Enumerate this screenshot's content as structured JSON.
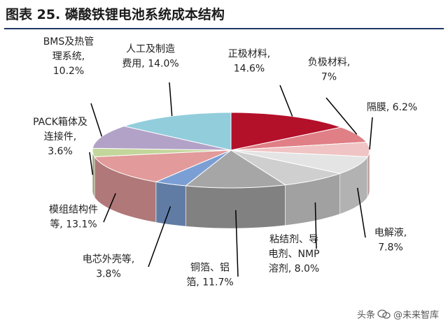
{
  "title": "图表 25. 磷酸铁锂电池系统成本结构",
  "watermark": {
    "prefix": "头条",
    "account": "@未来智库"
  },
  "chart_data": {
    "type": "pie",
    "title": "图表 25. 磷酸铁锂电池系统成本结构",
    "unit": "%",
    "start_direction": "top",
    "direction": "clockwise",
    "three_d": true,
    "legend": "none (labels with leader lines)",
    "slices": [
      {
        "name": "正极材料",
        "value": 14.6,
        "label_lines": [
          "正极材料,",
          "14.6%"
        ],
        "color": "#b3102a"
      },
      {
        "name": "负极材料",
        "value": 7.0,
        "label_lines": [
          "负极材料,",
          "7%"
        ],
        "color": "#e07f86"
      },
      {
        "name": "隔膜",
        "value": 6.2,
        "label_lines": [
          "隔膜, 6.2%"
        ],
        "color": "#f0c4c4"
      },
      {
        "name": "电解液",
        "value": 7.8,
        "label_lines": [
          "电解液,",
          "7.8%"
        ],
        "color": "#e4e4e4"
      },
      {
        "name": "粘结剂、导电剂、NMP溶剂",
        "value": 8.0,
        "label_lines": [
          "粘结剂、导",
          "电剂、NMP",
          "溶剂, 8.0%"
        ],
        "color": "#cfcfcf"
      },
      {
        "name": "铜箔、铝箔",
        "value": 11.7,
        "label_lines": [
          "铜箔、铝",
          "箔, 11.7%"
        ],
        "color": "#a6a6a6"
      },
      {
        "name": "电芯外壳等",
        "value": 3.8,
        "label_lines": [
          "电芯外壳等,",
          "3.8%"
        ],
        "color": "#7b9fd4"
      },
      {
        "name": "模组结构件等",
        "value": 13.1,
        "label_lines": [
          "模组结构件",
          "等, 13.1%"
        ],
        "color": "#e29a9a"
      },
      {
        "name": "PACK箱体及连接件",
        "value": 3.6,
        "label_lines": [
          "PACK箱体及",
          "连接件,",
          "3.6%"
        ],
        "color": "#c3d69b"
      },
      {
        "name": "BMS及热管理系统",
        "value": 10.2,
        "label_lines": [
          "BMS及热管",
          "理系统,",
          "10.2%"
        ],
        "color": "#b3a2c7"
      },
      {
        "name": "人工及制造费用",
        "value": 14.0,
        "label_lines": [
          "人工及制造",
          "费用, 14.0%"
        ],
        "color": "#92cddc"
      }
    ]
  }
}
